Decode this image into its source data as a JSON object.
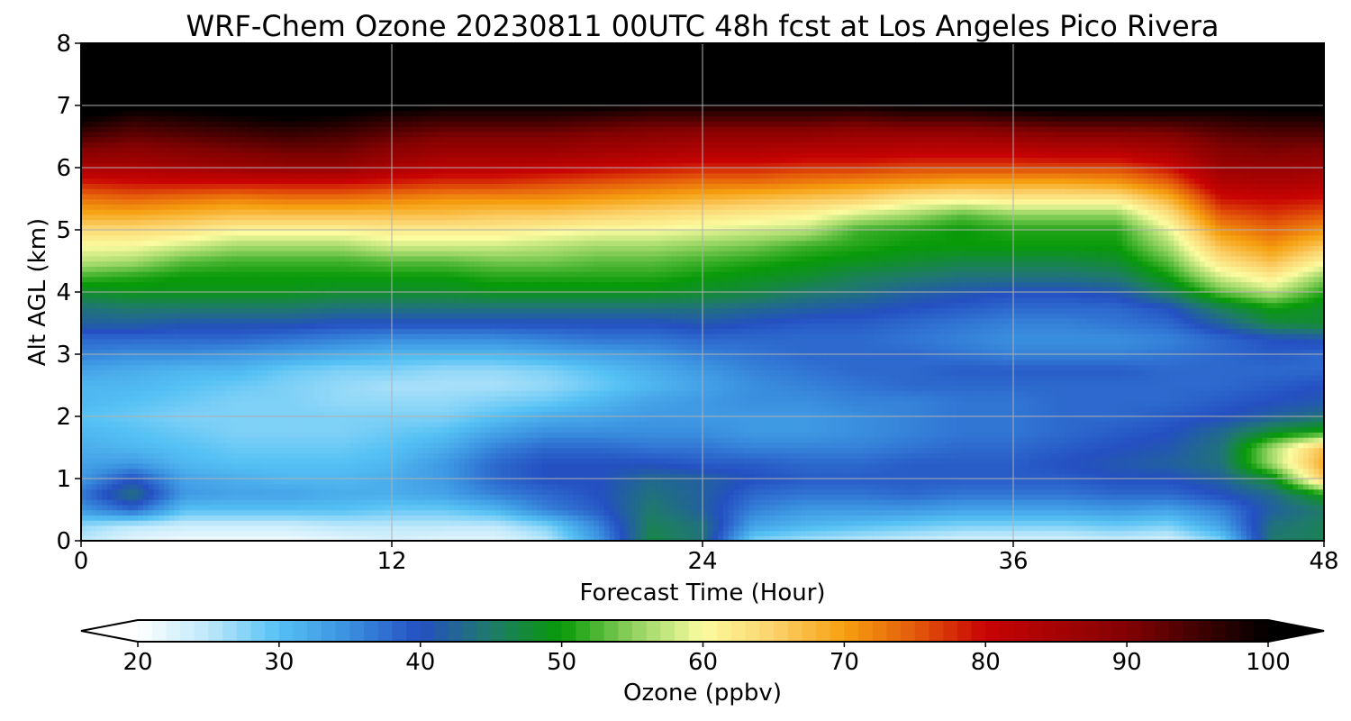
{
  "chart_data": {
    "type": "heatmap",
    "title": "WRF-Chem Ozone  20230811 00UTC 48h fcst at Los Angeles Pico Rivera",
    "xlabel": "Forecast Time (Hour)",
    "ylabel": "Alt AGL (km)",
    "xlim": [
      0,
      48
    ],
    "ylim": [
      0,
      8
    ],
    "xticks": [
      "0",
      "12",
      "24",
      "36",
      "48"
    ],
    "yticks": [
      "0",
      "1",
      "2",
      "3",
      "4",
      "5",
      "6",
      "7",
      "8"
    ],
    "grid": true,
    "x_hours": [
      0,
      2,
      4,
      6,
      8,
      10,
      12,
      14,
      16,
      18,
      20,
      22,
      24,
      26,
      28,
      30,
      32,
      34,
      36,
      38,
      40,
      42,
      44,
      46,
      48
    ],
    "y_km": [
      0,
      0.25,
      0.5,
      0.75,
      1,
      1.25,
      1.5,
      1.75,
      2,
      2.25,
      2.5,
      2.75,
      3,
      3.25,
      3.5,
      3.75,
      4,
      4.25,
      4.5,
      4.75,
      5,
      5.25,
      5.5,
      5.75,
      6,
      6.25,
      6.5,
      6.75,
      7,
      7.25,
      7.5,
      7.75,
      8
    ],
    "ozone_ppbv": [
      [
        25,
        22,
        21,
        21,
        21,
        22,
        23,
        22,
        22,
        25,
        34,
        47,
        44,
        28,
        26,
        25,
        24,
        23,
        23,
        23,
        24,
        23,
        28,
        45,
        46
      ],
      [
        27,
        25,
        24,
        24,
        24,
        25,
        25,
        25,
        25,
        28,
        36,
        46,
        44,
        33,
        31,
        30,
        29,
        28,
        28,
        28,
        29,
        28,
        33,
        44,
        46
      ],
      [
        34,
        38,
        30,
        30,
        30,
        30,
        29,
        29,
        31,
        36,
        39,
        45,
        42,
        36,
        34,
        34,
        34,
        33,
        33,
        33,
        34,
        33,
        36,
        42,
        45
      ],
      [
        37,
        44,
        34,
        33,
        33,
        32,
        32,
        33,
        36,
        38,
        40,
        44,
        42,
        38,
        37,
        37,
        38,
        37,
        37,
        37,
        38,
        38,
        40,
        43,
        50
      ],
      [
        34,
        40,
        33,
        32,
        31,
        31,
        32,
        34,
        38,
        40,
        40,
        43,
        42,
        40,
        39,
        39,
        39,
        39,
        39,
        39,
        40,
        40,
        42,
        48,
        66
      ],
      [
        33,
        34,
        31,
        30,
        30,
        30,
        31,
        34,
        38,
        40,
        40,
        40,
        39,
        39,
        38,
        38,
        39,
        39,
        39,
        40,
        41,
        42,
        44,
        56,
        69
      ],
      [
        32,
        31,
        30,
        29,
        29,
        29,
        30,
        32,
        36,
        38,
        38,
        37,
        37,
        36,
        36,
        36,
        37,
        38,
        38,
        39,
        40,
        41,
        44,
        56,
        67
      ],
      [
        31,
        30,
        29,
        28,
        28,
        28,
        29,
        30,
        33,
        35,
        35,
        35,
        35,
        34,
        34,
        35,
        36,
        37,
        37,
        38,
        39,
        40,
        43,
        48,
        51
      ],
      [
        30,
        29,
        28,
        28,
        28,
        28,
        28,
        28,
        30,
        32,
        33,
        34,
        34,
        34,
        34,
        35,
        36,
        37,
        37,
        38,
        38,
        39,
        40,
        42,
        44
      ],
      [
        31,
        30,
        29,
        28,
        28,
        27,
        27,
        27,
        28,
        29,
        31,
        33,
        34,
        35,
        35,
        36,
        36,
        37,
        37,
        38,
        38,
        38,
        39,
        40,
        41
      ],
      [
        31,
        31,
        30,
        29,
        28,
        27,
        26,
        26,
        26,
        27,
        29,
        31,
        33,
        35,
        36,
        37,
        38,
        38,
        38,
        38,
        38,
        38,
        38,
        39,
        40
      ],
      [
        33,
        32,
        31,
        31,
        29,
        28,
        28,
        27,
        27,
        28,
        30,
        32,
        34,
        36,
        37,
        38,
        38,
        39,
        39,
        39,
        39,
        38,
        38,
        38,
        38
      ],
      [
        36,
        35,
        35,
        34,
        33,
        32,
        31,
        31,
        31,
        32,
        33,
        34,
        36,
        37,
        38,
        38,
        38,
        37,
        36,
        36,
        36,
        37,
        38,
        39,
        38
      ],
      [
        38,
        38,
        38,
        38,
        37,
        36,
        35,
        35,
        35,
        36,
        37,
        37,
        38,
        38,
        38,
        38,
        37,
        36,
        35,
        35,
        35,
        36,
        38,
        40,
        41
      ],
      [
        42,
        42,
        41,
        41,
        41,
        40,
        40,
        40,
        40,
        40,
        40,
        40,
        41,
        40,
        39,
        39,
        38,
        37,
        36,
        36,
        37,
        38,
        42,
        47,
        48
      ],
      [
        44,
        45,
        45,
        45,
        45,
        44,
        44,
        44,
        44,
        44,
        44,
        44,
        44,
        43,
        42,
        41,
        40,
        39,
        38,
        38,
        38,
        40,
        46,
        50,
        48
      ],
      [
        48,
        49,
        49,
        49,
        49,
        48,
        48,
        48,
        49,
        49,
        49,
        49,
        48,
        47,
        45,
        44,
        42,
        41,
        40,
        40,
        41,
        46,
        53,
        57,
        51
      ],
      [
        52,
        51,
        50,
        50,
        50,
        50,
        50,
        50,
        51,
        51,
        51,
        51,
        50,
        49,
        48,
        46,
        45,
        44,
        44,
        44,
        45,
        50,
        58,
        62,
        55
      ],
      [
        57,
        56,
        53,
        52,
        52,
        52,
        53,
        53,
        54,
        54,
        53,
        53,
        52,
        51,
        50,
        49,
        48,
        47,
        47,
        47,
        48,
        53,
        63,
        67,
        61
      ],
      [
        60,
        60,
        58,
        56,
        56,
        56,
        58,
        58,
        58,
        57,
        56,
        56,
        55,
        54,
        52,
        51,
        50,
        50,
        50,
        50,
        50,
        56,
        67,
        71,
        66
      ],
      [
        64,
        64,
        63,
        61,
        61,
        61,
        62,
        62,
        62,
        61,
        60,
        60,
        59,
        58,
        57,
        52,
        51,
        50,
        51,
        51,
        51,
        59,
        71,
        74,
        71
      ],
      [
        69,
        69,
        68,
        67,
        67,
        67,
        67,
        67,
        66,
        66,
        65,
        64,
        63,
        62,
        61,
        58,
        56,
        53,
        55,
        55,
        55,
        63,
        75,
        77,
        75
      ],
      [
        73,
        74,
        73,
        72,
        73,
        73,
        72,
        71,
        71,
        71,
        70,
        69,
        68,
        67,
        66,
        65,
        62,
        61,
        62,
        62,
        62,
        68,
        79,
        80,
        79
      ],
      [
        78,
        79,
        79,
        79,
        79,
        79,
        78,
        77,
        77,
        76,
        75,
        74,
        73,
        73,
        72,
        71,
        70,
        69,
        69,
        69,
        70,
        74,
        83,
        84,
        83
      ],
      [
        84,
        84,
        85,
        86,
        87,
        87,
        84,
        82,
        82,
        81,
        80,
        79,
        78,
        78,
        77,
        77,
        76,
        76,
        76,
        76,
        76,
        79,
        86,
        87,
        86
      ],
      [
        89,
        88,
        89,
        90,
        91,
        91,
        88,
        86,
        86,
        86,
        85,
        84,
        83,
        83,
        82,
        82,
        81,
        81,
        81,
        82,
        82,
        84,
        89,
        90,
        89
      ],
      [
        94,
        92,
        93,
        94,
        95,
        94,
        92,
        90,
        90,
        90,
        89,
        88,
        87,
        87,
        87,
        86,
        86,
        86,
        87,
        88,
        88,
        89,
        92,
        93,
        93
      ],
      [
        99,
        96,
        97,
        98,
        99,
        98,
        96,
        95,
        95,
        95,
        94,
        93,
        93,
        93,
        93,
        92,
        93,
        93,
        94,
        95,
        95,
        95,
        96,
        97,
        97
      ],
      [
        103,
        101,
        101,
        102,
        103,
        102,
        101,
        100,
        100,
        100,
        100,
        99,
        99,
        99,
        99,
        99,
        100,
        100,
        101,
        102,
        102,
        102,
        101,
        101,
        101
      ],
      [
        106,
        105,
        105,
        105,
        106,
        106,
        105,
        104,
        104,
        104,
        104,
        104,
        104,
        104,
        104,
        104,
        105,
        105,
        106,
        106,
        106,
        106,
        105,
        105,
        105
      ],
      [
        108,
        108,
        108,
        108,
        108,
        108,
        108,
        108,
        108,
        108,
        108,
        108,
        108,
        108,
        108,
        108,
        108,
        108,
        108,
        108,
        108,
        108,
        108,
        108,
        108
      ],
      [
        110,
        110,
        110,
        110,
        110,
        110,
        110,
        110,
        110,
        110,
        110,
        110,
        110,
        110,
        110,
        110,
        110,
        110,
        110,
        110,
        110,
        110,
        110,
        110,
        110
      ],
      [
        112,
        112,
        112,
        112,
        112,
        112,
        112,
        112,
        112,
        112,
        112,
        112,
        112,
        112,
        112,
        112,
        112,
        112,
        112,
        112,
        112,
        112,
        112,
        112,
        112
      ]
    ],
    "colorbar": {
      "label": "Ozone  (ppbv)",
      "ticks": [
        "20",
        "30",
        "40",
        "50",
        "60",
        "70",
        "80",
        "90",
        "100"
      ],
      "range": [
        20,
        100
      ],
      "extend": "both",
      "under_color": "#ffffff",
      "over_color": "#000000",
      "stops": [
        {
          "value": 20,
          "color": "#ffffff"
        },
        {
          "value": 25,
          "color": "#bde8fb"
        },
        {
          "value": 30,
          "color": "#55c1f4"
        },
        {
          "value": 35,
          "color": "#3a8fdf"
        },
        {
          "value": 40,
          "color": "#2450c2"
        },
        {
          "value": 45,
          "color": "#1f7a6a"
        },
        {
          "value": 50,
          "color": "#089a08"
        },
        {
          "value": 55,
          "color": "#8fd25e"
        },
        {
          "value": 60,
          "color": "#fbfca0"
        },
        {
          "value": 65,
          "color": "#fbd26c"
        },
        {
          "value": 70,
          "color": "#f6a010"
        },
        {
          "value": 75,
          "color": "#e45a0a"
        },
        {
          "value": 80,
          "color": "#c80303"
        },
        {
          "value": 90,
          "color": "#820202"
        },
        {
          "value": 100,
          "color": "#000000"
        }
      ]
    }
  }
}
